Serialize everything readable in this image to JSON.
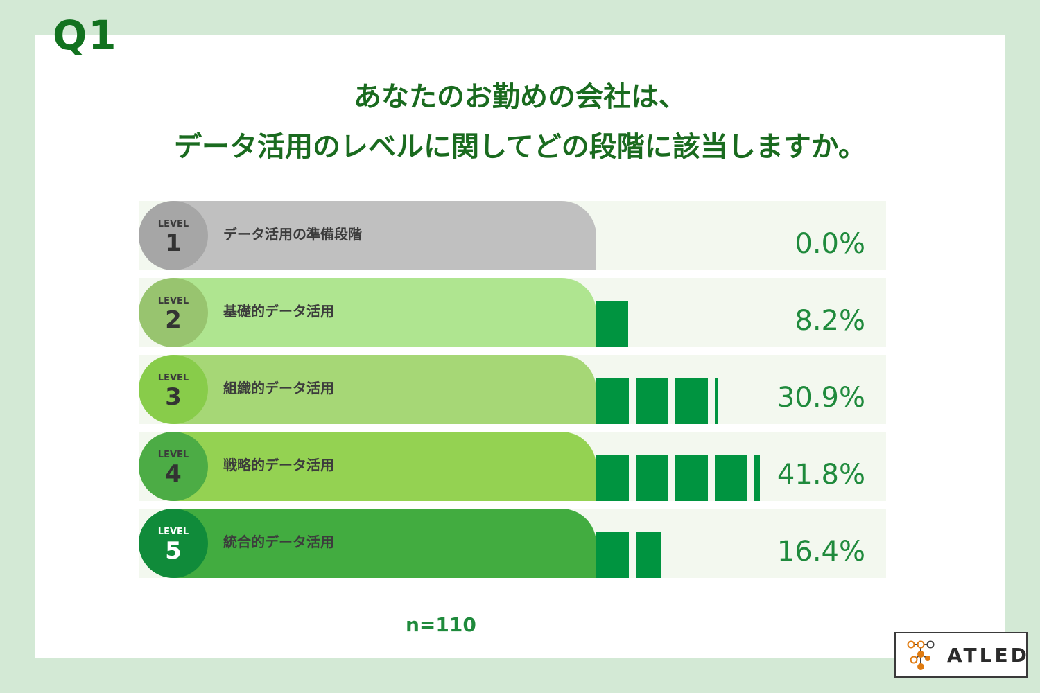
{
  "question_label": "Q1",
  "title": {
    "line1": "あなたのお勤めの会社は、",
    "line2": "データ活用のレベルに関してどの段階に該当しますか。"
  },
  "chart_data": {
    "type": "bar",
    "orientation": "horizontal",
    "categories": [
      "データ活用の準備段階",
      "基礎的データ活用",
      "組織的データ活用",
      "戦略的データ活用",
      "統合的データ活用"
    ],
    "levels": [
      {
        "level_text": "LEVEL",
        "number": "1"
      },
      {
        "level_text": "LEVEL",
        "number": "2"
      },
      {
        "level_text": "LEVEL",
        "number": "3"
      },
      {
        "level_text": "LEVEL",
        "number": "4"
      },
      {
        "level_text": "LEVEL",
        "number": "5"
      }
    ],
    "values": [
      0.0,
      8.2,
      30.9,
      41.8,
      16.4
    ],
    "value_labels": [
      "0.0%",
      "8.2%",
      "30.9%",
      "41.8%",
      "16.4%"
    ],
    "unit": "%",
    "bar_color": "#009440",
    "row_colors": [
      "#c0c0c0",
      "#afe590",
      "#a6d776",
      "#94d252",
      "#42ac40"
    ],
    "badge_colors": [
      "#a6a6a6",
      "#98c46f",
      "#88cc4a",
      "#4cac45",
      "#108b3a"
    ],
    "sample_size": "n=110"
  },
  "logo": {
    "text": "ATLED",
    "icon": "molecule-icon"
  }
}
